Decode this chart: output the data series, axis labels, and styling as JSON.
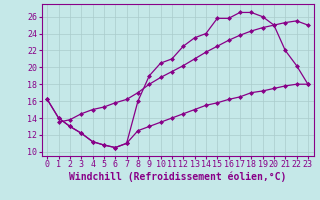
{
  "title": "",
  "xlabel": "Windchill (Refroidissement éolien,°C)",
  "ylabel": "",
  "bg_color": "#c5e8e8",
  "grid_color": "#b0d8d8",
  "line_color": "#880088",
  "xlim": [
    -0.5,
    23.5
  ],
  "ylim": [
    9.5,
    27.5
  ],
  "xticks": [
    0,
    1,
    2,
    3,
    4,
    5,
    6,
    7,
    8,
    9,
    10,
    11,
    12,
    13,
    14,
    15,
    16,
    17,
    18,
    19,
    20,
    21,
    22,
    23
  ],
  "yticks": [
    10,
    12,
    14,
    16,
    18,
    20,
    22,
    24,
    26
  ],
  "line1_x": [
    0,
    1,
    2,
    3,
    4,
    5,
    6,
    7,
    8,
    9,
    10,
    11,
    12,
    13,
    14,
    15,
    16,
    17,
    18,
    19,
    20,
    21,
    22,
    23
  ],
  "line1_y": [
    16.2,
    14.0,
    13.0,
    12.2,
    11.2,
    10.8,
    10.5,
    11.0,
    16.0,
    19.0,
    20.5,
    21.0,
    22.5,
    23.5,
    24.0,
    25.8,
    25.8,
    26.5,
    26.5,
    26.0,
    25.0,
    22.0,
    20.2,
    18.0
  ],
  "line2_x": [
    1,
    2,
    3,
    4,
    5,
    6,
    7,
    8,
    9,
    10,
    11,
    12,
    13,
    14,
    15,
    16,
    17,
    18,
    19,
    20,
    21,
    22,
    23
  ],
  "line2_y": [
    13.5,
    13.8,
    14.5,
    15.0,
    15.3,
    15.8,
    16.2,
    17.0,
    18.0,
    18.8,
    19.5,
    20.2,
    21.0,
    21.8,
    22.5,
    23.2,
    23.8,
    24.3,
    24.7,
    25.0,
    25.3,
    25.5,
    25.0
  ],
  "line3_x": [
    0,
    1,
    2,
    3,
    4,
    5,
    6,
    7,
    8,
    9,
    10,
    11,
    12,
    13,
    14,
    15,
    16,
    17,
    18,
    19,
    20,
    21,
    22,
    23
  ],
  "line3_y": [
    16.2,
    14.0,
    13.0,
    12.2,
    11.2,
    10.8,
    10.5,
    11.0,
    12.5,
    13.0,
    13.5,
    14.0,
    14.5,
    15.0,
    15.5,
    15.8,
    16.2,
    16.5,
    17.0,
    17.2,
    17.5,
    17.8,
    18.0,
    18.0
  ],
  "xlabel_fontsize": 7,
  "tick_fontsize": 6,
  "marker": "D",
  "markersize": 2.0,
  "linewidth": 0.9
}
